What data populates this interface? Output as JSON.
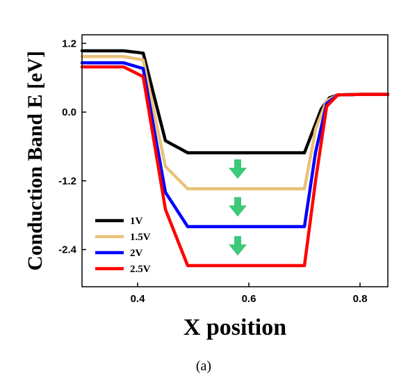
{
  "chart_data": {
    "type": "line",
    "xlabel": "X position",
    "ylabel": "Conduction Band E  [eV]",
    "xlim": [
      0.3,
      0.85
    ],
    "ylim": [
      -3.05,
      1.35
    ],
    "xticks": [
      0.4,
      0.6,
      0.8
    ],
    "xtick_labels": [
      "0.4",
      "0.6",
      "0.8"
    ],
    "yticks": [
      1.2,
      0.0,
      -1.2,
      -2.4
    ],
    "ytick_labels": [
      "1.2",
      "0.0",
      "-1.2",
      "-2.4"
    ],
    "legend_position": "bottom-left",
    "caption": "(a)",
    "series": [
      {
        "name": "1V",
        "color": "#000000",
        "x": [
          0.3,
          0.375,
          0.41,
          0.45,
          0.49,
          0.7,
          0.73,
          0.745,
          0.76,
          0.8,
          0.85
        ],
        "y": [
          1.07,
          1.07,
          1.03,
          -0.5,
          -0.71,
          -0.71,
          0.05,
          0.25,
          0.3,
          0.31,
          0.31
        ]
      },
      {
        "name": "1.5V",
        "color": "#E8C27A",
        "x": [
          0.3,
          0.375,
          0.41,
          0.45,
          0.49,
          0.7,
          0.72,
          0.74,
          0.76,
          0.8,
          0.85
        ],
        "y": [
          0.97,
          0.97,
          0.91,
          -0.95,
          -1.34,
          -1.34,
          -0.3,
          0.2,
          0.3,
          0.31,
          0.31
        ]
      },
      {
        "name": "2V",
        "color": "#0000FF",
        "x": [
          0.3,
          0.375,
          0.41,
          0.45,
          0.49,
          0.7,
          0.72,
          0.74,
          0.76,
          0.8,
          0.85
        ],
        "y": [
          0.86,
          0.86,
          0.76,
          -1.4,
          -2.0,
          -2.0,
          -0.7,
          0.15,
          0.3,
          0.31,
          0.31
        ]
      },
      {
        "name": "2.5V",
        "color": "#FF0000",
        "x": [
          0.3,
          0.375,
          0.41,
          0.45,
          0.49,
          0.7,
          0.72,
          0.74,
          0.76,
          0.8,
          0.85
        ],
        "y": [
          0.79,
          0.79,
          0.62,
          -1.7,
          -2.68,
          -2.68,
          -1.2,
          0.1,
          0.3,
          0.31,
          0.31
        ]
      }
    ],
    "annotations": [
      {
        "type": "down-arrow",
        "x": 0.58,
        "y": -1.02,
        "color": "#3CC97A"
      },
      {
        "type": "down-arrow",
        "x": 0.58,
        "y": -1.68,
        "color": "#3CC97A"
      },
      {
        "type": "down-arrow",
        "x": 0.58,
        "y": -2.36,
        "color": "#3CC97A"
      }
    ]
  }
}
